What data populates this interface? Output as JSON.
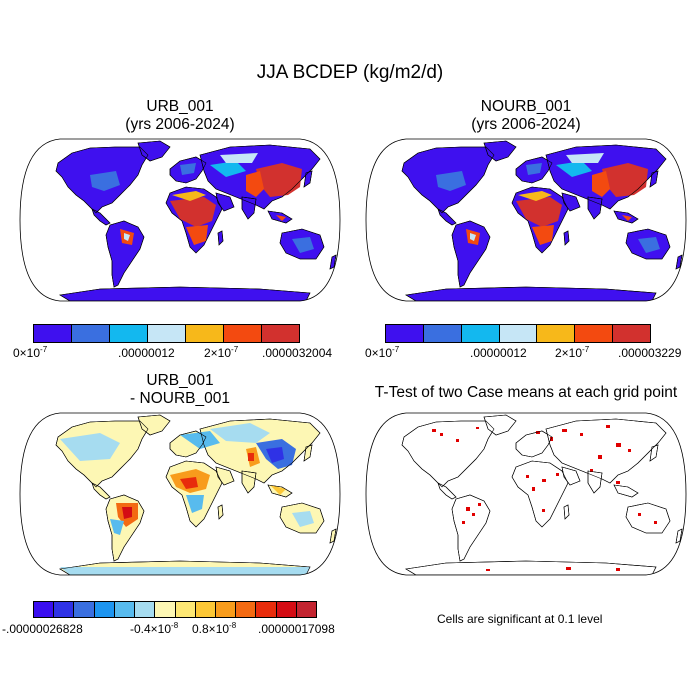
{
  "title": "JJA BCDEP (kg/m2/d)",
  "panels": {
    "p1": {
      "title_line1": "URB_001",
      "title_line2": "(yrs 2006-2024)"
    },
    "p2": {
      "title_line1": "NOURB_001",
      "title_line2": "(yrs 2006-2024)"
    },
    "p3": {
      "title_line1": "URB_001",
      "title_line2": "- NOURB_001"
    },
    "p4": {
      "title_line1": "T-Test of two Case means at each grid point",
      "note": "Cells are significant at 0.1 level"
    }
  },
  "colorbars": {
    "cb1": {
      "colors": [
        "#3f10ef",
        "#3a6fe0",
        "#13b8ef",
        "#c6e6f6",
        "#f7b81a",
        "#f34a10",
        "#d2312e"
      ],
      "lab0_base": "0×10",
      "lab0_exp": "-7",
      "lab1": ".00000012",
      "lab2_base": "2×10",
      "lab2_exp": "-7",
      "lab3": ".0000032004"
    },
    "cb2": {
      "colors": [
        "#3f10ef",
        "#3a6fe0",
        "#13b8ef",
        "#c6e6f6",
        "#f7b81a",
        "#f34a10",
        "#d2312e"
      ],
      "lab0_base": "0×10",
      "lab0_exp": "-7",
      "lab1": ".00000012",
      "lab2_base": "2×10",
      "lab2_exp": "-7",
      "lab3": ".000003229"
    },
    "cb3": {
      "colors": [
        "#3a0ef0",
        "#2f32e6",
        "#3a6fe0",
        "#1d95f0",
        "#58bbee",
        "#a6dcf0",
        "#fdf7b4",
        "#fde774",
        "#fcc736",
        "#f89c1c",
        "#f36a12",
        "#e82c0c",
        "#d40c14",
        "#c32430"
      ],
      "lab0": "-.00000026828",
      "lab1_base": "-0.4×10",
      "lab1_exp": "-8",
      "lab2_base": "0.8×10",
      "lab2_exp": "-8",
      "lab3": ".00000017098"
    }
  },
  "colors": {
    "land_outline": "#000000",
    "ocean": "#ffffff",
    "significant": "#e00000"
  }
}
